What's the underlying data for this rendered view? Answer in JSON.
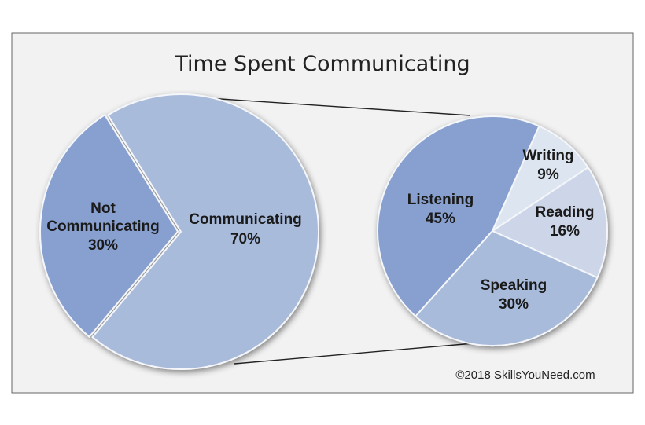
{
  "chart_data": [
    {
      "type": "pie",
      "title": "Time Spent Communicating",
      "slices": [
        {
          "label": "Communicating",
          "value": 70,
          "value_label": "70%",
          "color": "#a9bbdb"
        },
        {
          "label": "Not Communicating",
          "value": 30,
          "value_label": "30%",
          "color": "#87a0d0"
        }
      ]
    },
    {
      "type": "pie",
      "slices": [
        {
          "label": "Listening",
          "value": 45,
          "value_label": "45%",
          "color": "#87a0d0"
        },
        {
          "label": "Writing",
          "value": 9,
          "value_label": "9%",
          "color": "#dde5f0"
        },
        {
          "label": "Reading",
          "value": 16,
          "value_label": "16%",
          "color": "#ccd6e8"
        },
        {
          "label": "Speaking",
          "value": 30,
          "value_label": "30%",
          "color": "#a9bbdb"
        }
      ]
    }
  ],
  "credit": "©2018 SkillsYouNeed.com",
  "colors": {
    "frame_background": "#f2f2f2",
    "frame_border": "#666666",
    "slice_edge": "#f4f6fa",
    "connector_line": "#222222"
  }
}
